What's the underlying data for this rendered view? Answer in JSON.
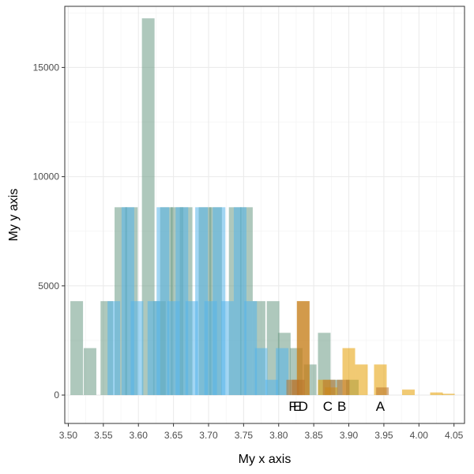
{
  "chart_data": {
    "type": "bar",
    "xlabel": "My x axis",
    "ylabel": "My y axis",
    "xlim": [
      3.495,
      4.065
    ],
    "ylim": [
      -1300,
      17800
    ],
    "x_ticks": [
      "3.50",
      "3.55",
      "3.60",
      "3.65",
      "3.70",
      "3.75",
      "3.80",
      "3.85",
      "3.90",
      "3.95",
      "4.00",
      "4.05"
    ],
    "y_ticks": [
      "0",
      "5000",
      "10000",
      "15000"
    ],
    "grid": true,
    "legend": "none",
    "series": [
      {
        "color": "#6b9a85",
        "bars": [
          {
            "x": 3.512,
            "w": 0.018,
            "y": 4300
          },
          {
            "x": 3.531,
            "w": 0.018,
            "y": 2150
          },
          {
            "x": 3.555,
            "w": 0.018,
            "y": 4300
          },
          {
            "x": 3.575,
            "w": 0.018,
            "y": 8600
          },
          {
            "x": 3.59,
            "w": 0.018,
            "y": 8600
          },
          {
            "x": 3.614,
            "w": 0.018,
            "y": 17250
          },
          {
            "x": 3.63,
            "w": 0.018,
            "y": 4300
          },
          {
            "x": 3.64,
            "w": 0.018,
            "y": 8600
          },
          {
            "x": 3.655,
            "w": 0.018,
            "y": 8600
          },
          {
            "x": 3.668,
            "w": 0.018,
            "y": 8600
          },
          {
            "x": 3.695,
            "w": 0.018,
            "y": 8600
          },
          {
            "x": 3.71,
            "w": 0.018,
            "y": 8600
          },
          {
            "x": 3.738,
            "w": 0.018,
            "y": 8600
          },
          {
            "x": 3.754,
            "w": 0.018,
            "y": 8600
          },
          {
            "x": 3.772,
            "w": 0.018,
            "y": 4300
          },
          {
            "x": 3.792,
            "w": 0.018,
            "y": 4300
          },
          {
            "x": 3.808,
            "w": 0.018,
            "y": 2850
          },
          {
            "x": 3.825,
            "w": 0.018,
            "y": 2150
          },
          {
            "x": 3.845,
            "w": 0.018,
            "y": 1400
          },
          {
            "x": 3.865,
            "w": 0.018,
            "y": 2850
          },
          {
            "x": 3.882,
            "w": 0.018,
            "y": 700
          },
          {
            "x": 3.905,
            "w": 0.018,
            "y": 700
          },
          {
            "x": 3.922,
            "w": 0.018,
            "y": 0
          }
        ]
      },
      {
        "color": "#e69f00",
        "bars": [
          {
            "x": 3.835,
            "w": 0.018,
            "y": 4300
          },
          {
            "x": 3.865,
            "w": 0.018,
            "y": 700
          },
          {
            "x": 3.875,
            "w": 0.018,
            "y": 350
          },
          {
            "x": 3.9,
            "w": 0.018,
            "y": 2150
          },
          {
            "x": 3.918,
            "w": 0.018,
            "y": 1400
          },
          {
            "x": 3.945,
            "w": 0.018,
            "y": 1400
          },
          {
            "x": 3.985,
            "w": 0.018,
            "y": 250
          },
          {
            "x": 4.025,
            "w": 0.018,
            "y": 120
          },
          {
            "x": 4.042,
            "w": 0.018,
            "y": 60
          }
        ]
      },
      {
        "color": "#56b4e9",
        "bars": [
          {
            "x": 3.565,
            "w": 0.018,
            "y": 4300
          },
          {
            "x": 3.585,
            "w": 0.018,
            "y": 8600
          },
          {
            "x": 3.598,
            "w": 0.018,
            "y": 4300
          },
          {
            "x": 3.622,
            "w": 0.018,
            "y": 4300
          },
          {
            "x": 3.635,
            "w": 0.018,
            "y": 8600
          },
          {
            "x": 3.65,
            "w": 0.018,
            "y": 4300
          },
          {
            "x": 3.662,
            "w": 0.018,
            "y": 8600
          },
          {
            "x": 3.676,
            "w": 0.018,
            "y": 4300
          },
          {
            "x": 3.69,
            "w": 0.018,
            "y": 8600
          },
          {
            "x": 3.703,
            "w": 0.018,
            "y": 4300
          },
          {
            "x": 3.715,
            "w": 0.018,
            "y": 8600
          },
          {
            "x": 3.727,
            "w": 0.018,
            "y": 4300
          },
          {
            "x": 3.745,
            "w": 0.018,
            "y": 8600
          },
          {
            "x": 3.76,
            "w": 0.018,
            "y": 4300
          },
          {
            "x": 3.775,
            "w": 0.018,
            "y": 2150
          },
          {
            "x": 3.79,
            "w": 0.018,
            "y": 700
          },
          {
            "x": 3.805,
            "w": 0.018,
            "y": 2150
          }
        ]
      },
      {
        "color": "#b8732a",
        "bars": [
          {
            "x": 3.82,
            "w": 0.018,
            "y": 700
          },
          {
            "x": 3.835,
            "w": 0.018,
            "y": 4300
          },
          {
            "x": 3.828,
            "w": 0.018,
            "y": 700
          },
          {
            "x": 3.872,
            "w": 0.018,
            "y": 700
          },
          {
            "x": 3.892,
            "w": 0.018,
            "y": 700
          },
          {
            "x": 3.948,
            "w": 0.018,
            "y": 350
          }
        ]
      }
    ],
    "annotations": [
      {
        "label": "F",
        "x": 3.82
      },
      {
        "label": "E",
        "x": 3.827
      },
      {
        "label": "D",
        "x": 3.835
      },
      {
        "label": "C",
        "x": 3.87
      },
      {
        "label": "B",
        "x": 3.89
      },
      {
        "label": "A",
        "x": 3.945
      }
    ]
  }
}
